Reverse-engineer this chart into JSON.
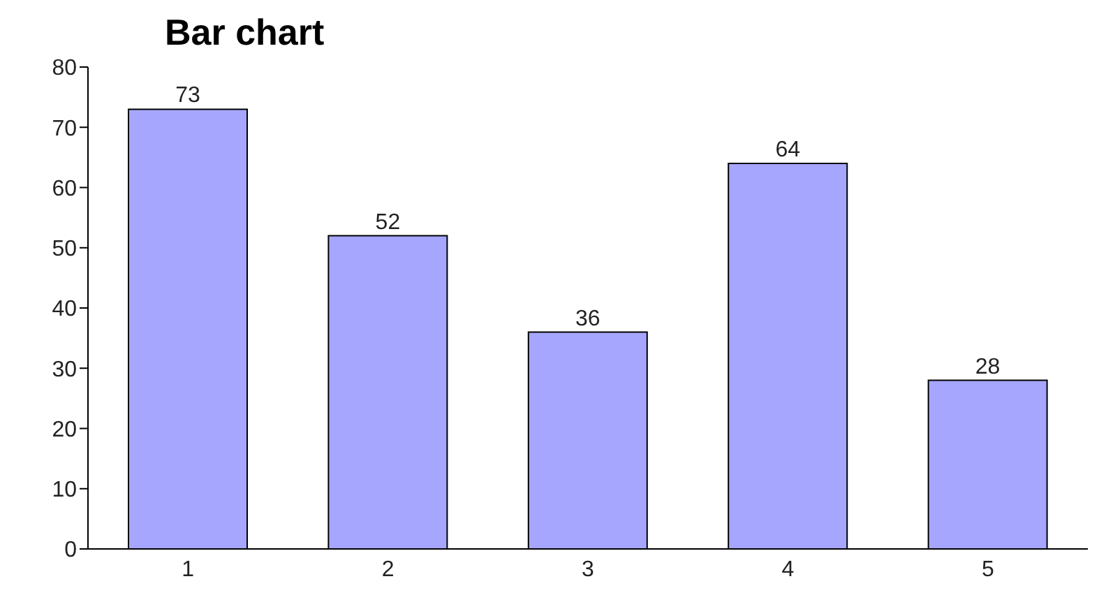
{
  "chart_data": {
    "type": "bar",
    "title": "Bar chart",
    "categories": [
      "1",
      "2",
      "3",
      "4",
      "5"
    ],
    "values": [
      73,
      52,
      36,
      64,
      28
    ],
    "color": "#a6a6ff",
    "ylim": [
      0,
      80
    ],
    "yticks": [
      0,
      10,
      20,
      30,
      40,
      50,
      60,
      70,
      80
    ],
    "data_labels": true,
    "grid": false
  }
}
